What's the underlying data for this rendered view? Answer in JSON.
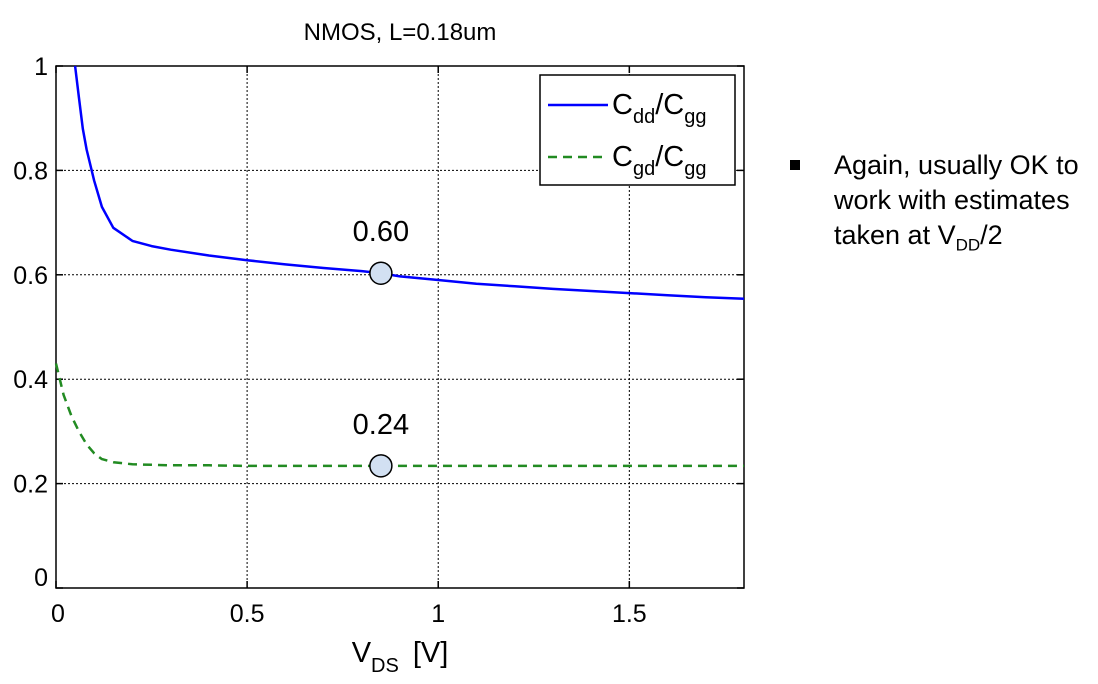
{
  "chart_data": {
    "type": "line",
    "title": "NMOS, L=0.18um",
    "xlabel": {
      "main": "V",
      "sub": "DS",
      "unit": "[V]"
    },
    "ylabel": "",
    "xlim": [
      0,
      1.8
    ],
    "ylim": [
      0,
      1
    ],
    "xticks": [
      0,
      0.5,
      1,
      1.5
    ],
    "xtick_labels": [
      "0",
      "0.5",
      "1",
      "1.5"
    ],
    "yticks": [
      0,
      0.2,
      0.4,
      0.6,
      0.8,
      1
    ],
    "ytick_labels": [
      "0",
      "0.2",
      "0.4",
      "0.6",
      "0.8",
      "1"
    ],
    "grid": true,
    "legend_position": "top-right",
    "series": [
      {
        "name": {
          "a": "C",
          "a_sub": "dd",
          "b": "/C",
          "b_sub": "gg"
        },
        "color": "#0000ff",
        "style": "solid",
        "x": [
          0.05,
          0.06,
          0.07,
          0.08,
          0.1,
          0.12,
          0.15,
          0.2,
          0.25,
          0.3,
          0.4,
          0.5,
          0.6,
          0.7,
          0.8,
          0.85,
          0.9,
          1.0,
          1.1,
          1.2,
          1.3,
          1.4,
          1.5,
          1.6,
          1.7,
          1.8
        ],
        "y": [
          1.0,
          0.94,
          0.88,
          0.84,
          0.78,
          0.73,
          0.69,
          0.665,
          0.655,
          0.648,
          0.637,
          0.628,
          0.62,
          0.613,
          0.607,
          0.603,
          0.597,
          0.59,
          0.583,
          0.578,
          0.573,
          0.569,
          0.565,
          0.561,
          0.557,
          0.554
        ]
      },
      {
        "name": {
          "a": "C",
          "a_sub": "gd",
          "b": "/C",
          "b_sub": "gg"
        },
        "color": "#228B22",
        "style": "dashed",
        "x": [
          0.0,
          0.02,
          0.04,
          0.06,
          0.08,
          0.1,
          0.12,
          0.15,
          0.2,
          0.3,
          0.4,
          0.5,
          0.85,
          1.0,
          1.5,
          1.8
        ],
        "y": [
          0.43,
          0.37,
          0.33,
          0.3,
          0.275,
          0.258,
          0.247,
          0.241,
          0.237,
          0.235,
          0.235,
          0.234,
          0.234,
          0.234,
          0.234,
          0.234
        ]
      }
    ],
    "annotations": [
      {
        "text": "0.60",
        "x": 0.85,
        "y": 0.603
      },
      {
        "text": "0.24",
        "x": 0.85,
        "y": 0.234
      }
    ]
  },
  "bullet": {
    "text": "Again, usually OK to work with estimates taken at V",
    "sub": "DD",
    "tail": "/2"
  }
}
